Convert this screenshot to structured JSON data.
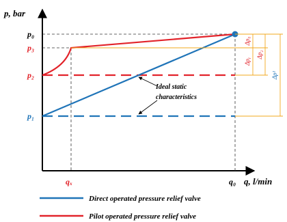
{
  "axes": {
    "y_label": "p,  bar",
    "x_label": "q,  l/min",
    "y_ticks": [
      "p₀",
      "p₃",
      "p₂",
      "p₁"
    ],
    "x_ticks": [
      "qₓ",
      "q₀"
    ]
  },
  "deltas": [
    "Δp₀",
    "Δp₂",
    "Δpᵧ",
    "Δp¹"
  ],
  "annotation": [
    "Ideal static",
    "characteristics"
  ],
  "legend": [
    {
      "label": "Direct operated pressure relief valve",
      "color": "#1f74b8"
    },
    {
      "label": "Pilot operated pressure relief valve",
      "color": "#e2232a"
    }
  ],
  "colors": {
    "axis": "#000000",
    "direct": "#1f74b8",
    "pilot": "#e2232a",
    "bracket": "#f2a81d",
    "guide": "#333333"
  }
}
